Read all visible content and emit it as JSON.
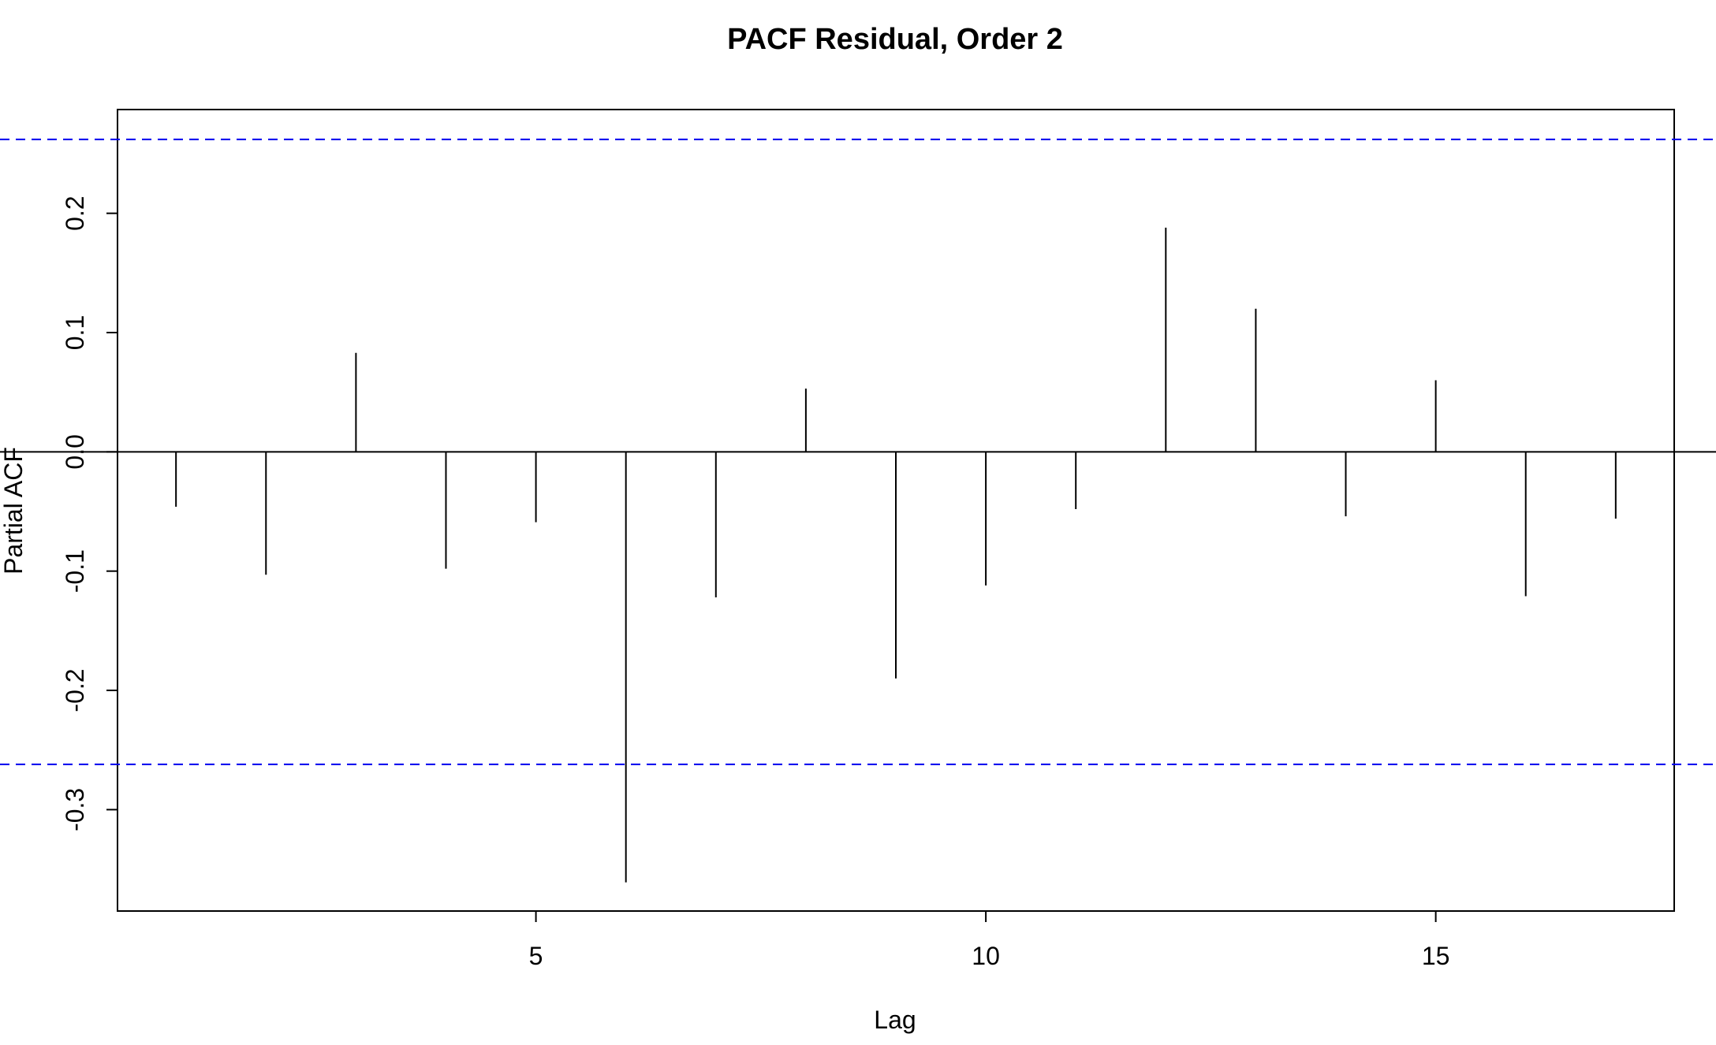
{
  "chart_data": {
    "type": "bar",
    "title": "PACF Residual, Order 2",
    "xlabel": "Lag",
    "ylabel": "Partial ACF",
    "xlim": [
      0.35,
      17.65
    ],
    "ylim": [
      -0.385,
      0.287
    ],
    "x_ticks": [
      5,
      10,
      15
    ],
    "y_ticks": [
      -0.3,
      -0.2,
      -0.1,
      0.0,
      0.1,
      0.2
    ],
    "y_tick_labels": [
      "-0.3",
      "-0.2",
      "-0.1",
      "0.0",
      "0.1",
      "0.2"
    ],
    "confidence_bound": 0.262,
    "confidence_color": "#0000ee",
    "bar_color": "#000000",
    "grid": false,
    "x": [
      1,
      2,
      3,
      4,
      5,
      6,
      7,
      8,
      9,
      10,
      11,
      12,
      13,
      14,
      15,
      16,
      17
    ],
    "values": [
      -0.046,
      -0.103,
      0.083,
      -0.098,
      -0.059,
      -0.361,
      -0.122,
      0.053,
      -0.19,
      -0.112,
      -0.048,
      0.188,
      0.12,
      -0.054,
      0.06,
      -0.121,
      -0.056
    ]
  }
}
